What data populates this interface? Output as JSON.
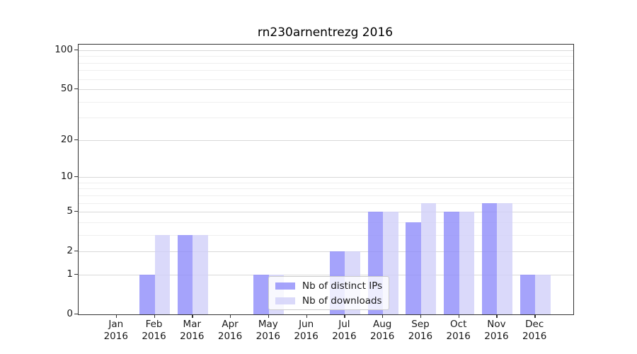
{
  "figure": {
    "title": "rn230arnentrezg 2016"
  },
  "chart_data": {
    "type": "bar",
    "title": "rn230arnentrezg 2016",
    "categories": [
      "Jan",
      "Feb",
      "Mar",
      "Apr",
      "May",
      "Jun",
      "Jul",
      "Aug",
      "Sep",
      "Oct",
      "Nov",
      "Dec"
    ],
    "category_year": "2016",
    "series": [
      {
        "name": "Nb of distinct IPs",
        "color": "#8c89fa",
        "values": [
          0,
          1,
          3,
          0,
          1,
          0,
          2,
          5,
          4,
          5,
          6,
          1
        ]
      },
      {
        "name": "Nb of downloads",
        "color": "#d0cef8",
        "values": [
          0,
          3,
          3,
          0,
          1,
          0,
          2,
          5,
          6,
          5,
          6,
          1
        ]
      }
    ],
    "xlabel": "",
    "ylabel": "",
    "yscale": "log1p",
    "yticks": [
      0,
      1,
      2,
      5,
      10,
      20,
      50,
      100
    ],
    "minor_yticks": [
      3,
      4,
      6,
      7,
      8,
      9,
      30,
      40,
      60,
      70,
      80,
      90
    ],
    "ylim": [
      0,
      110.4
    ],
    "grid": "horizontal major and minor gridlines",
    "legend_position": "inside lower-center",
    "bar_layout": "grouped pair per month, dark left / light right"
  },
  "legend": {
    "items": [
      {
        "label": "Nb of distinct IPs",
        "swatch_color": "#8c89fa"
      },
      {
        "label": "Nb of downloads",
        "swatch_color": "#d0cef8"
      }
    ]
  }
}
